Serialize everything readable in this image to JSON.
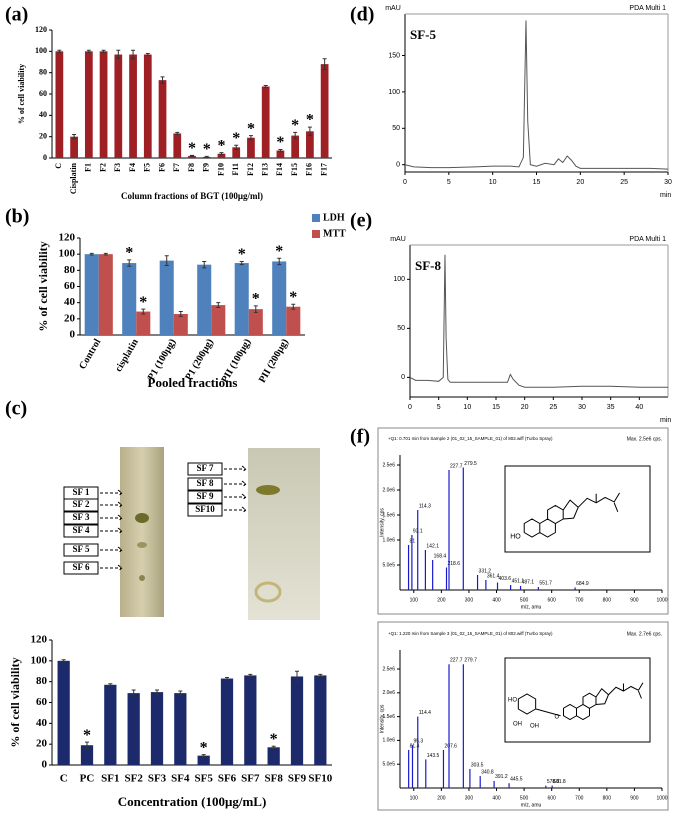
{
  "panels": [
    "(a)",
    "(b)",
    "(c)",
    "(d)",
    "(e)",
    "(f)"
  ],
  "tlc": {
    "left": [
      "SF 1",
      "SF 2",
      "SF 3",
      "SF 4",
      "SF 5",
      "SF 6"
    ],
    "right": [
      "SF 7",
      "SF 8",
      "SF 9",
      "SF10"
    ]
  },
  "structures": [
    {
      "labels": [
        "HO"
      ]
    },
    {
      "labels": [
        "HO",
        "O",
        "OH",
        "OH"
      ]
    }
  ],
  "chart_data": [
    {
      "type": "bar",
      "y_label": "% of cell viability",
      "x_label": "Column fractions of BGT (100μg/ml)",
      "color": "#9e1f24",
      "categories": [
        "C",
        "Cisplatin",
        "F1",
        "F2",
        "F3",
        "F4",
        "F5",
        "F6",
        "F7",
        "F8",
        "F9",
        "F10",
        "F11",
        "F12",
        "F13",
        "F14",
        "F15",
        "F16",
        "F17"
      ],
      "values": [
        100,
        20,
        100,
        100,
        97,
        97,
        97,
        73,
        23,
        2,
        1,
        4,
        10,
        19,
        67,
        7,
        21,
        25,
        88
      ],
      "errors": [
        1,
        2,
        1,
        1,
        4,
        4,
        1,
        3,
        1,
        0.5,
        0.5,
        1,
        2,
        2,
        1,
        1,
        3,
        4,
        5
      ],
      "significance": [
        null,
        null,
        null,
        null,
        null,
        null,
        null,
        null,
        null,
        "*",
        "*",
        "*",
        "*",
        "*",
        null,
        "*",
        "*",
        "*",
        null
      ],
      "ylim": [
        0,
        120
      ],
      "yticks": [
        0,
        20,
        40,
        60,
        80,
        100,
        120
      ]
    },
    {
      "type": "bar",
      "y_label": "% of cell viability",
      "x_label": "Pooled fractions",
      "categories": [
        "Control",
        "cisplatin",
        "P1 (100μg)",
        "P1 (200μg)",
        "PII (100μg)",
        "PII (200μg)"
      ],
      "series": [
        {
          "name": "LDH",
          "color": "#4f81bd",
          "values": [
            100,
            89,
            92,
            87,
            89,
            91
          ],
          "errors": [
            1,
            4,
            6,
            4,
            2,
            4
          ],
          "significance": [
            null,
            "*",
            null,
            null,
            "*",
            "*"
          ]
        },
        {
          "name": "MTT",
          "color": "#c0504d",
          "values": [
            100,
            29,
            26,
            37,
            32,
            35
          ],
          "errors": [
            1,
            3,
            3,
            3,
            4,
            3
          ],
          "significance": [
            null,
            "*",
            null,
            null,
            "*",
            "*"
          ]
        }
      ],
      "ylim": [
        0,
        120
      ],
      "yticks": [
        0,
        20,
        40,
        60,
        80,
        100,
        120
      ]
    },
    {
      "type": "bar",
      "y_label": "% of cell viability",
      "x_label": "Concentration (100μg/mL)",
      "color": "#1c2a6b",
      "categories": [
        "C",
        "PC",
        "SF1",
        "SF2",
        "SF3",
        "SF4",
        "SF5",
        "SF6",
        "SF7",
        "SF8",
        "SF9",
        "SF10"
      ],
      "values": [
        100,
        19,
        77,
        69,
        70,
        69,
        9,
        83,
        86,
        17,
        85,
        86
      ],
      "errors": [
        1,
        3,
        1,
        3,
        2,
        2,
        1,
        1,
        1,
        1,
        5,
        1
      ],
      "significance": [
        null,
        "*",
        null,
        null,
        null,
        null,
        "*",
        null,
        null,
        "*",
        null,
        null
      ],
      "ylim": [
        0,
        120
      ],
      "yticks": [
        0,
        20,
        40,
        60,
        80,
        100,
        120
      ]
    },
    {
      "type": "line",
      "title": "SF-5",
      "y_label": "mAU",
      "x_label": "min",
      "x": [
        0,
        1,
        3,
        5,
        8,
        10,
        12,
        13,
        13.5,
        13.8,
        14.0,
        14.3,
        15,
        16,
        17,
        17.5,
        18,
        18.5,
        19,
        19.5,
        20,
        22,
        25,
        28,
        30
      ],
      "series": [
        {
          "name": "PDA Multi 1",
          "color": "#555555",
          "values": [
            0,
            -3,
            -4,
            -4,
            -3,
            -2,
            -2,
            -3,
            10,
            198,
            60,
            0,
            -2,
            2,
            0,
            8,
            3,
            12,
            6,
            -2,
            -5,
            -5,
            -5,
            -5,
            -6
          ]
        }
      ],
      "xlim": [
        0,
        30
      ],
      "xticks": [
        0,
        5,
        10,
        15,
        20,
        25,
        30
      ],
      "ylim": [
        -10,
        207
      ],
      "yticks": [
        0,
        50,
        100,
        150
      ]
    },
    {
      "type": "line",
      "title": "SF-8",
      "y_label": "mAU",
      "x_label": "min",
      "x": [
        0,
        1,
        3,
        5,
        5.8,
        6.1,
        6.3,
        6.6,
        7,
        10,
        15,
        17,
        17.5,
        18,
        19,
        20,
        25,
        30,
        35,
        40,
        45
      ],
      "series": [
        {
          "name": "PDA Multi 1",
          "color": "#555555",
          "values": [
            0,
            -3,
            -3,
            -4,
            0,
            125,
            40,
            -2,
            -5,
            -5,
            -5,
            -5,
            3,
            -2,
            -8,
            -10,
            -10,
            -9,
            -9,
            -10,
            -10
          ]
        }
      ],
      "xlim": [
        0,
        45
      ],
      "xticks": [
        0,
        5,
        10,
        15,
        20,
        25,
        30,
        35,
        40
      ],
      "ylim": [
        -20,
        135
      ],
      "yticks": [
        0,
        50,
        100
      ]
    },
    {
      "type": "spectrum",
      "title": "+Q1: 0.701 min from Sample 2 (01_02_15_SAMPLE_01) of 802.wiff (Turbo Spray)",
      "max_label": "Max. 2.5e6 cps.",
      "y_label": "Intensity, cps",
      "x_label": "m/z, amu",
      "color": "#1a1acc",
      "x": [
        81.0,
        93.1,
        114.3,
        142.1,
        168.4,
        218.6,
        227.7,
        279.5,
        331.2,
        361.4,
        403.6,
        451.1,
        487.1,
        551.7,
        684.9
      ],
      "values": [
        900000,
        1100000,
        1600000,
        800000,
        600000,
        450000,
        2400000,
        2450000,
        300000,
        200000,
        150000,
        100000,
        80000,
        60000,
        50000
      ],
      "xlim": [
        50,
        1000
      ],
      "xticks": [
        100,
        200,
        300,
        400,
        500,
        600,
        700,
        800,
        900,
        1000
      ],
      "ylim": [
        0,
        2700000
      ],
      "yticks": [
        {
          "value": 500000,
          "label": "5.0e5"
        },
        {
          "value": 1000000,
          "label": "1.0e6"
        },
        {
          "value": 1500000,
          "label": "1.5e6"
        },
        {
          "value": 2000000,
          "label": "2.0e6"
        },
        {
          "value": 2500000,
          "label": "2.5e6"
        }
      ]
    },
    {
      "type": "spectrum",
      "title": "+Q1: 1.220 min from Sample 3 (01_02_15_SAMPLE_01) of 802.wiff (Turbo Spray)",
      "max_label": "Max. 2.7e6 cps.",
      "y_label": "Intensity, cps",
      "x_label": "m/z, amu",
      "color": "#1a1acc",
      "x": [
        81.4,
        95.3,
        114.4,
        143.5,
        207.6,
        227.7,
        279.7,
        303.5,
        340.8,
        391.2,
        445.5,
        578.8,
        601.8
      ],
      "values": [
        800000,
        900000,
        1500000,
        600000,
        800000,
        2600000,
        2600000,
        400000,
        250000,
        150000,
        100000,
        50000,
        50000
      ],
      "xlim": [
        50,
        1000
      ],
      "xticks": [
        100,
        200,
        300,
        400,
        500,
        600,
        700,
        800,
        900,
        1000
      ],
      "ylim": [
        0,
        2900000
      ],
      "yticks": [
        {
          "value": 500000,
          "label": "5.0e5"
        },
        {
          "value": 1000000,
          "label": "1.0e6"
        },
        {
          "value": 1500000,
          "label": "1.5e6"
        },
        {
          "value": 2000000,
          "label": "2.0e6"
        },
        {
          "value": 2500000,
          "label": "2.5e6"
        }
      ]
    }
  ]
}
